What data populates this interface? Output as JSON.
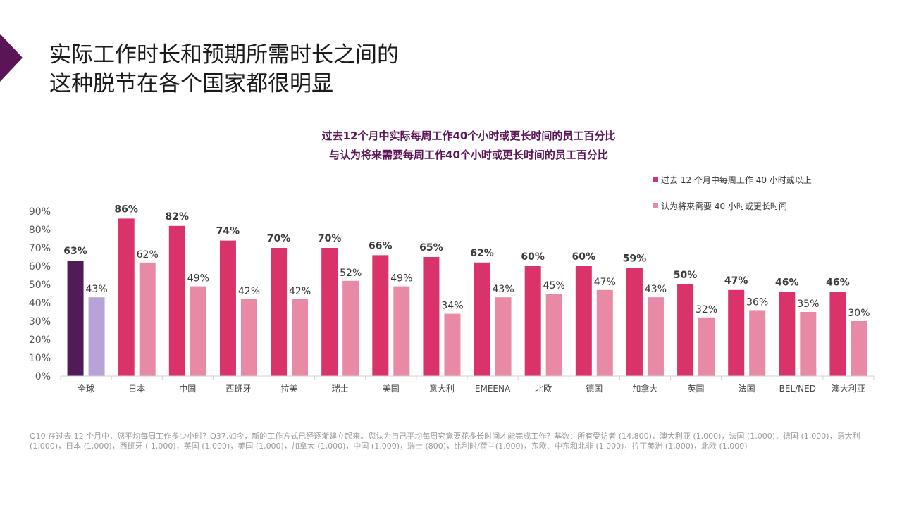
{
  "title": {
    "line1": "实际工作时长和预期所需时长之间的",
    "line2": "这种脱节在各个国家都很明显"
  },
  "subtitle": {
    "line1": "过去12个月中实际每周工作40个小时或更长时间的员工百分比",
    "line2": "与认为将来需要每周工作40个小时或更长时间的员工百分比"
  },
  "footnote": "Q10.在过去 12 个月中，您平均每周工作多少小时？Q37.如今，新的工作方式已经逐渐建立起来。您认为自己平均每周究竟要花多长时间才能完成工作？基数：所有受访者 (14,800)，澳大利亚 (1,000)，法国 (1,000)，德国 (1,000)，意大利 (1,000)，日本 (1,000)，西班牙 ( 1,000)，英国 (1,000)，美国 (1,000)，加拿大 (1,000)，中国 (1,000)，瑞士 (800)，比利时/荷兰(1,000)，东欧、中东和北非 (1,000)，拉丁美洲 (1,000)，北欧 (1,000)",
  "colors": {
    "accent": "#5a1457",
    "series1": "#d9336a",
    "series2": "#e88aa6",
    "global1": "#521a59",
    "global2": "#b9a3d6"
  },
  "chart_data": {
    "type": "bar",
    "categories": [
      "全球",
      "日本",
      "中国",
      "西班牙",
      "拉美",
      "瑞士",
      "美国",
      "意大利",
      "EMEENA",
      "北欧",
      "德国",
      "加拿大",
      "英国",
      "法国",
      "BEL/NED",
      "澳大利亚"
    ],
    "series": [
      {
        "name": "过去 12 个月中每周工作 40 小时或以上",
        "values": [
          63,
          86,
          82,
          74,
          70,
          70,
          66,
          65,
          62,
          60,
          60,
          59,
          50,
          47,
          46,
          46
        ]
      },
      {
        "name": "认为将来需要 40 小时或更长时间",
        "values": [
          43,
          62,
          49,
          42,
          42,
          52,
          49,
          34,
          43,
          45,
          47,
          43,
          32,
          36,
          35,
          30
        ]
      }
    ],
    "ylim": [
      0,
      90
    ],
    "yticks": [
      "0%",
      "10%",
      "20%",
      "30%",
      "40%",
      "50%",
      "60%",
      "70%",
      "80%",
      "90%"
    ],
    "value_suffix": "%",
    "legend_position": "top-right",
    "grid": false
  }
}
